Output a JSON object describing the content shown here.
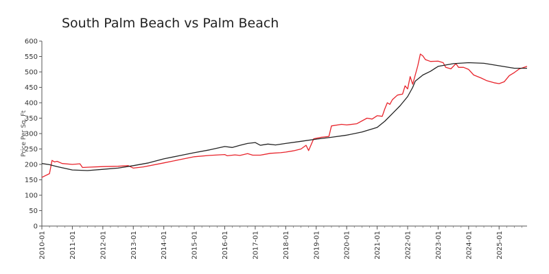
{
  "chart_data": {
    "type": "line",
    "title": "South Palm Beach vs Palm Beach",
    "xlabel": "",
    "ylabel": "Price Per Sq. Ft",
    "ylim": [
      0,
      600
    ],
    "yticks": [
      0,
      50,
      100,
      150,
      200,
      250,
      300,
      350,
      400,
      450,
      500,
      550,
      600
    ],
    "xlim": [
      "2010-01",
      "2025-12"
    ],
    "xticks": [
      "2010-01",
      "2011-01",
      "2012-01",
      "2013-01",
      "2014-01",
      "2015-01",
      "2016-01",
      "2017-01",
      "2018-01",
      "2019-01",
      "2020-01",
      "2021-01",
      "2022-01",
      "2023-01",
      "2024-01",
      "2025-01"
    ],
    "grid": false,
    "legend": "none",
    "series": [
      {
        "color": "#e8222a",
        "points": [
          [
            "2010-01",
            158
          ],
          [
            "2010-04",
            170
          ],
          [
            "2010-05",
            213
          ],
          [
            "2010-06",
            208
          ],
          [
            "2010-07",
            210
          ],
          [
            "2010-09",
            203
          ],
          [
            "2011-01",
            200
          ],
          [
            "2011-04",
            202
          ],
          [
            "2011-05",
            190
          ],
          [
            "2011-07",
            191
          ],
          [
            "2012-01",
            193
          ],
          [
            "2012-07",
            194
          ],
          [
            "2012-11",
            196
          ],
          [
            "2013-01",
            188
          ],
          [
            "2013-05",
            192
          ],
          [
            "2014-01",
            205
          ],
          [
            "2014-07",
            215
          ],
          [
            "2015-01",
            225
          ],
          [
            "2015-07",
            229
          ],
          [
            "2016-01",
            232
          ],
          [
            "2016-02",
            228
          ],
          [
            "2016-05",
            231
          ],
          [
            "2016-07",
            229
          ],
          [
            "2016-10",
            235
          ],
          [
            "2016-12",
            230
          ],
          [
            "2017-03",
            230
          ],
          [
            "2017-07",
            236
          ],
          [
            "2017-11",
            238
          ],
          [
            "2018-01",
            240
          ],
          [
            "2018-04",
            244
          ],
          [
            "2018-07",
            250
          ],
          [
            "2018-09",
            262
          ],
          [
            "2018-10",
            245
          ],
          [
            "2018-12",
            283
          ],
          [
            "2019-03",
            288
          ],
          [
            "2019-06",
            291
          ],
          [
            "2019-07",
            325
          ],
          [
            "2019-11",
            330
          ],
          [
            "2020-01",
            328
          ],
          [
            "2020-05",
            332
          ],
          [
            "2020-09",
            350
          ],
          [
            "2020-11",
            347
          ],
          [
            "2021-01",
            358
          ],
          [
            "2021-03",
            356
          ],
          [
            "2021-04",
            380
          ],
          [
            "2021-05",
            400
          ],
          [
            "2021-06",
            395
          ],
          [
            "2021-07",
            410
          ],
          [
            "2021-09",
            425
          ],
          [
            "2021-11",
            428
          ],
          [
            "2021-12",
            455
          ],
          [
            "2022-01",
            445
          ],
          [
            "2022-02",
            485
          ],
          [
            "2022-03",
            460
          ],
          [
            "2022-05",
            520
          ],
          [
            "2022-06",
            558
          ],
          [
            "2022-07",
            552
          ],
          [
            "2022-08",
            540
          ],
          [
            "2022-10",
            534
          ],
          [
            "2023-01",
            535
          ],
          [
            "2023-03",
            530
          ],
          [
            "2023-04",
            515
          ],
          [
            "2023-06",
            510
          ],
          [
            "2023-08",
            527
          ],
          [
            "2023-09",
            515
          ],
          [
            "2023-11",
            515
          ],
          [
            "2024-01",
            508
          ],
          [
            "2024-03",
            490
          ],
          [
            "2024-06",
            480
          ],
          [
            "2024-08",
            472
          ],
          [
            "2024-11",
            465
          ],
          [
            "2025-01",
            462
          ],
          [
            "2025-03",
            468
          ],
          [
            "2025-05",
            488
          ],
          [
            "2025-07",
            498
          ],
          [
            "2025-09",
            510
          ],
          [
            "2025-12",
            518
          ]
        ]
      },
      {
        "color": "#222222",
        "points": [
          [
            "2010-01",
            203
          ],
          [
            "2010-04",
            199
          ],
          [
            "2010-07",
            193
          ],
          [
            "2011-01",
            182
          ],
          [
            "2011-07",
            180
          ],
          [
            "2012-01",
            184
          ],
          [
            "2012-07",
            188
          ],
          [
            "2013-01",
            196
          ],
          [
            "2013-07",
            205
          ],
          [
            "2014-01",
            218
          ],
          [
            "2014-07",
            228
          ],
          [
            "2015-01",
            238
          ],
          [
            "2015-07",
            247
          ],
          [
            "2016-01",
            258
          ],
          [
            "2016-04",
            255
          ],
          [
            "2016-07",
            262
          ],
          [
            "2016-10",
            268
          ],
          [
            "2017-01",
            271
          ],
          [
            "2017-03",
            262
          ],
          [
            "2017-06",
            266
          ],
          [
            "2017-09",
            263
          ],
          [
            "2018-01",
            268
          ],
          [
            "2018-07",
            275
          ],
          [
            "2019-01",
            282
          ],
          [
            "2019-07",
            288
          ],
          [
            "2020-01",
            295
          ],
          [
            "2020-07",
            305
          ],
          [
            "2021-01",
            320
          ],
          [
            "2021-04",
            340
          ],
          [
            "2021-07",
            365
          ],
          [
            "2021-10",
            390
          ],
          [
            "2022-01",
            420
          ],
          [
            "2022-03",
            450
          ],
          [
            "2022-04",
            470
          ],
          [
            "2022-07",
            490
          ],
          [
            "2022-10",
            502
          ],
          [
            "2023-01",
            518
          ],
          [
            "2023-07",
            527
          ],
          [
            "2024-01",
            530
          ],
          [
            "2024-07",
            528
          ],
          [
            "2025-01",
            520
          ],
          [
            "2025-07",
            512
          ],
          [
            "2025-12",
            512
          ]
        ]
      }
    ]
  }
}
